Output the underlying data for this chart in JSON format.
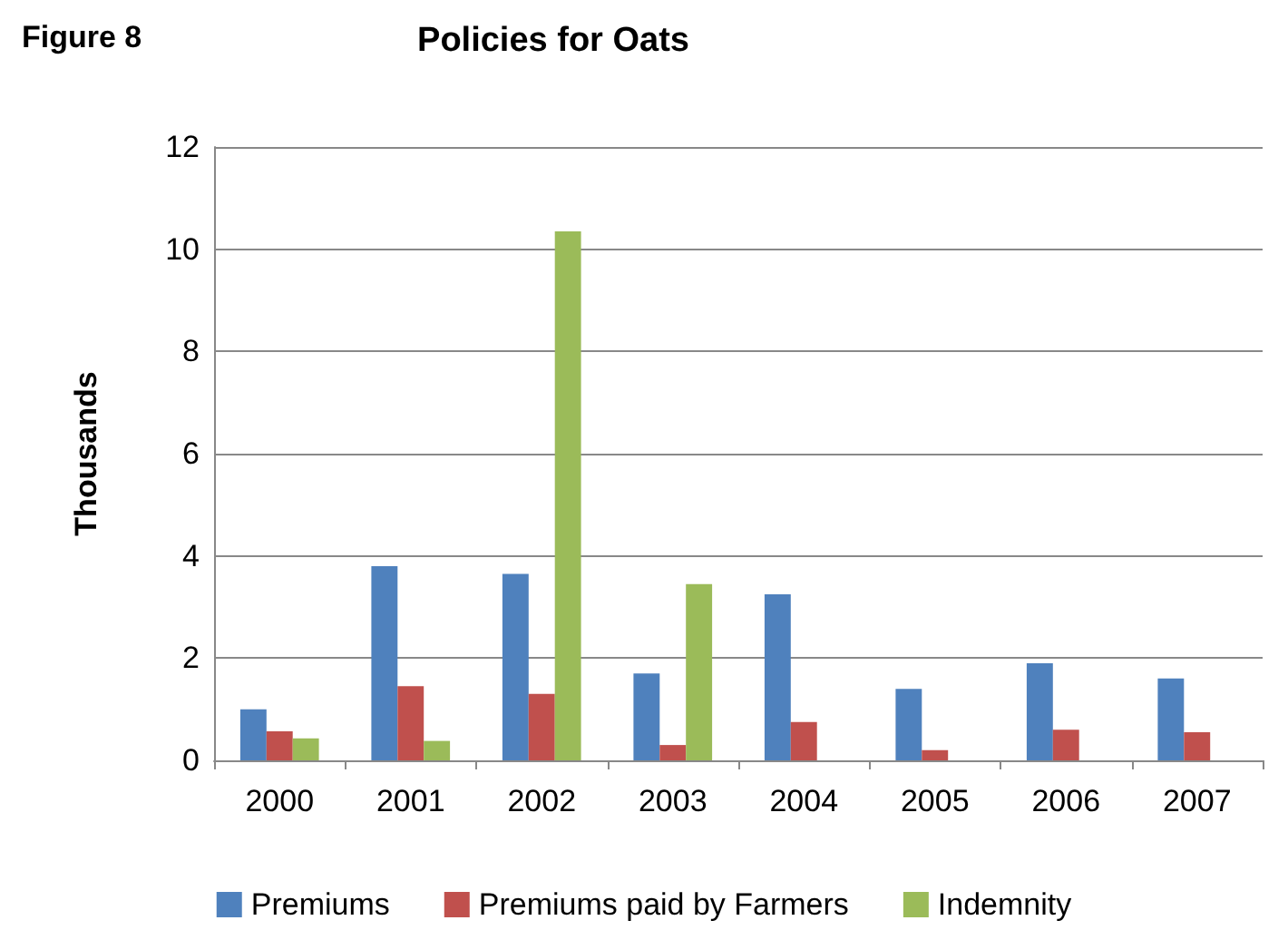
{
  "chart_data": {
    "type": "bar",
    "title": "Policies for Oats",
    "ylabel": "Thousands",
    "annotations": [
      "Figure 8"
    ],
    "categories": [
      "2000",
      "2001",
      "2002",
      "2003",
      "2004",
      "2005",
      "2006",
      "2007"
    ],
    "series": [
      {
        "name": "Premiums",
        "color": "#4f81bd",
        "values": [
          1.0,
          3.8,
          3.65,
          1.7,
          3.25,
          1.4,
          1.9,
          1.6
        ]
      },
      {
        "name": "Premiums paid by Farmers",
        "color": "#c0504d",
        "values": [
          0.57,
          1.45,
          1.3,
          0.3,
          0.75,
          0.2,
          0.6,
          0.55
        ]
      },
      {
        "name": "Indemnity",
        "color": "#9bbb59",
        "values": [
          0.43,
          0.38,
          10.35,
          3.45,
          null,
          null,
          null,
          null
        ]
      }
    ],
    "ylim": [
      0,
      12
    ],
    "yticks": [
      0,
      2,
      4,
      6,
      8,
      10,
      12
    ],
    "grid": "y",
    "legend": "bottom"
  }
}
